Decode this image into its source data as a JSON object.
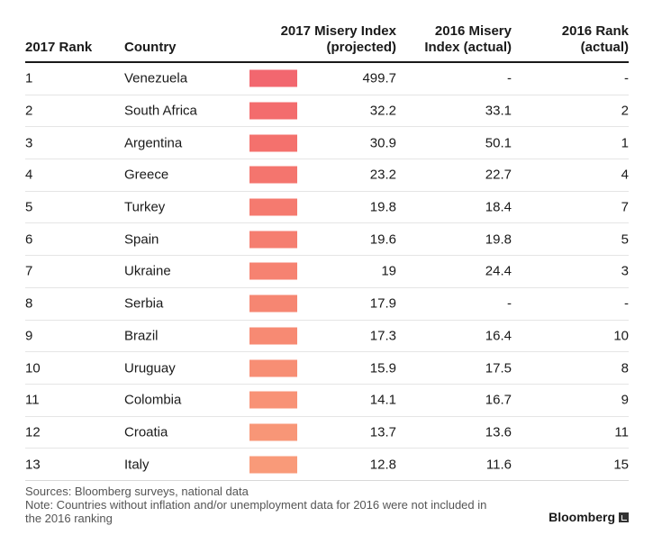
{
  "headers": {
    "rank_2017": "2017 Rank",
    "country": "Country",
    "misery_2017_line1": "2017 Misery Index",
    "misery_2017_line2": "(projected)",
    "misery_2016_line1": "2016 Misery",
    "misery_2016_line2": "Index (actual)",
    "rank_2016_line1": "2016 Rank",
    "rank_2016_line2": "(actual)"
  },
  "chart_data": {
    "type": "table",
    "columns": [
      "2017 Rank",
      "Country",
      "2017 Misery Index (projected)",
      "2016 Misery Index (actual)",
      "2016 Rank (actual)"
    ],
    "rows": [
      {
        "rank": "1",
        "country": "Venezuela",
        "misery_2017": "499.7",
        "misery_2016": "-",
        "rank_2016": "-",
        "color": "#f2676f"
      },
      {
        "rank": "2",
        "country": "South Africa",
        "misery_2017": "32.2",
        "misery_2016": "33.1",
        "rank_2016": "2",
        "color": "#f36c6d"
      },
      {
        "rank": "3",
        "country": "Argentina",
        "misery_2017": "30.9",
        "misery_2016": "50.1",
        "rank_2016": "1",
        "color": "#f4716d"
      },
      {
        "rank": "4",
        "country": "Greece",
        "misery_2017": "23.2",
        "misery_2016": "22.7",
        "rank_2016": "4",
        "color": "#f4756e"
      },
      {
        "rank": "5",
        "country": "Turkey",
        "misery_2017": "19.8",
        "misery_2016": "18.4",
        "rank_2016": "7",
        "color": "#f57a6f"
      },
      {
        "rank": "6",
        "country": "Spain",
        "misery_2017": "19.6",
        "misery_2016": "19.8",
        "rank_2016": "5",
        "color": "#f57e70"
      },
      {
        "rank": "7",
        "country": "Ukraine",
        "misery_2017": "19",
        "misery_2016": "24.4",
        "rank_2016": "3",
        "color": "#f68271"
      },
      {
        "rank": "8",
        "country": "Serbia",
        "misery_2017": "17.9",
        "misery_2016": "-",
        "rank_2016": "-",
        "color": "#f68672"
      },
      {
        "rank": "9",
        "country": "Brazil",
        "misery_2017": "17.3",
        "misery_2016": "16.4",
        "rank_2016": "10",
        "color": "#f78a73"
      },
      {
        "rank": "10",
        "country": "Uruguay",
        "misery_2017": "15.9",
        "misery_2016": "17.5",
        "rank_2016": "8",
        "color": "#f78e74"
      },
      {
        "rank": "11",
        "country": "Colombia",
        "misery_2017": "14.1",
        "misery_2016": "16.7",
        "rank_2016": "9",
        "color": "#f89276"
      },
      {
        "rank": "12",
        "country": "Croatia",
        "misery_2017": "13.7",
        "misery_2016": "13.6",
        "rank_2016": "11",
        "color": "#f89677"
      },
      {
        "rank": "13",
        "country": "Italy",
        "misery_2017": "12.8",
        "misery_2016": "11.6",
        "rank_2016": "15",
        "color": "#f99a79"
      }
    ]
  },
  "footer": {
    "sources": "Sources: Bloomberg surveys, national data",
    "note_line1": "Note: Countries without inflation and/or unemployment data for 2016 were not included in",
    "note_line2": "the 2016 ranking"
  },
  "logo": {
    "text": "Bloomberg",
    "icon": "bloomberg-terminal-icon"
  }
}
